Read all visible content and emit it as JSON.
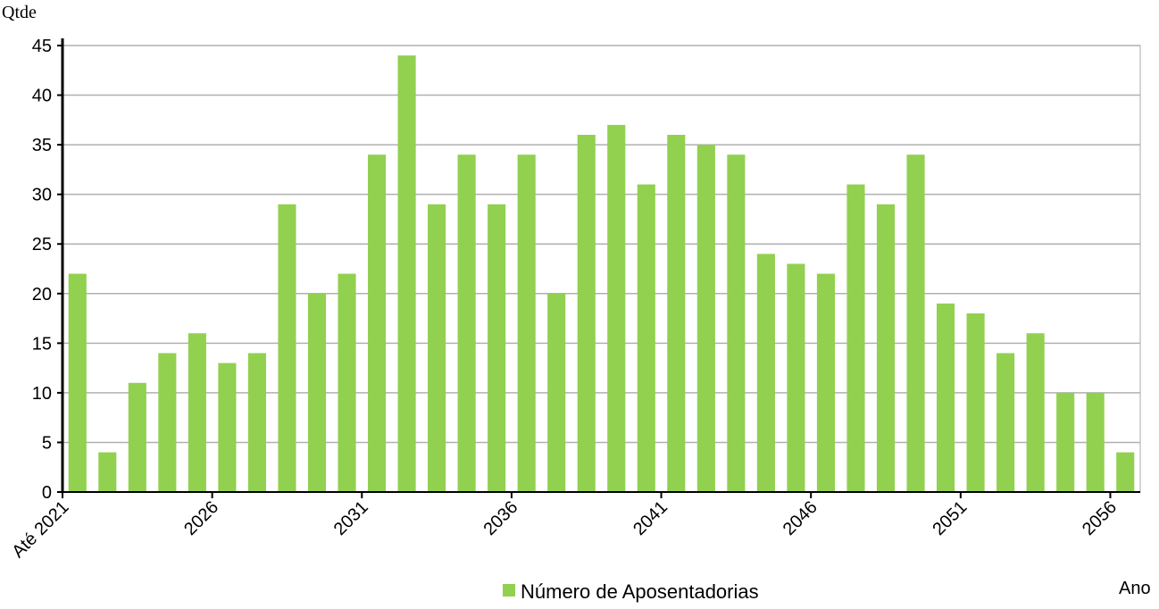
{
  "chart_data": {
    "type": "bar",
    "y_axis_label": "Qtde",
    "x_axis_label": "Ano",
    "categories": [
      "Até 2021",
      null,
      null,
      null,
      null,
      "2026",
      null,
      null,
      null,
      null,
      "2031",
      null,
      null,
      null,
      null,
      "2036",
      null,
      null,
      null,
      null,
      "2041",
      null,
      null,
      null,
      null,
      "2046",
      null,
      null,
      null,
      null,
      "2051",
      null,
      null,
      null,
      null,
      "2056"
    ],
    "series": [
      {
        "name": "Número de Aposentadorias",
        "color": "#92d050",
        "values": [
          22,
          4,
          11,
          14,
          16,
          13,
          14,
          29,
          20,
          22,
          34,
          44,
          29,
          34,
          29,
          34,
          20,
          36,
          37,
          31,
          36,
          35,
          34,
          24,
          23,
          22,
          31,
          29,
          34,
          19,
          18,
          14,
          16,
          10,
          10,
          4
        ]
      }
    ],
    "ylim": [
      0,
      45
    ],
    "yticks": [
      0,
      5,
      10,
      15,
      20,
      25,
      30,
      35,
      40,
      45
    ],
    "grid": true,
    "legend": "bottom"
  }
}
